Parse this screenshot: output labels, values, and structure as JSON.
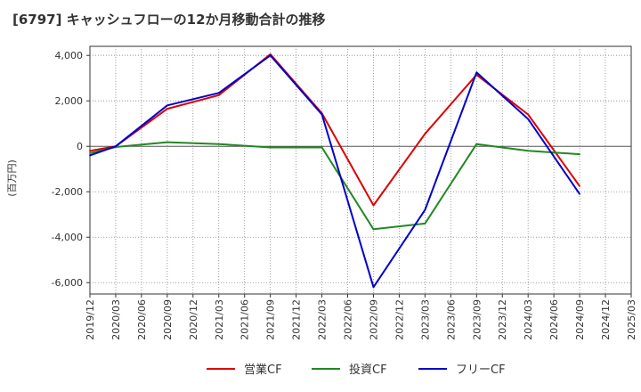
{
  "title": "[6797]  キャッシュフローの12か月移動合計の推移",
  "chart_data": {
    "type": "line",
    "title": "[6797]  キャッシュフローの12か月移動合計の推移",
    "ylabel": "(百万円)",
    "xlabel": "",
    "ylim": [
      -6500,
      4400
    ],
    "yticks": [
      4000,
      2000,
      0,
      -2000,
      -4000,
      -6000
    ],
    "ytick_labels": [
      "4,000",
      "2,000",
      "0",
      "-2,000",
      "-4,000",
      "-6,000"
    ],
    "x_ticks": [
      "2019/12",
      "2020/03",
      "2020/06",
      "2020/09",
      "2020/12",
      "2021/03",
      "2021/06",
      "2021/09",
      "2021/12",
      "2022/03",
      "2022/06",
      "2022/09",
      "2022/12",
      "2023/03",
      "2023/06",
      "2023/09",
      "2023/12",
      "2024/03",
      "2024/06",
      "2024/09",
      "2024/12",
      "2025/03"
    ],
    "x": [
      "2019/12",
      "2020/03",
      "2020/09",
      "2021/03",
      "2021/09",
      "2022/03",
      "2022/09",
      "2023/03",
      "2023/09",
      "2024/03",
      "2024/09"
    ],
    "grid": true,
    "legend": "bottom",
    "series": [
      {
        "name": "営業CF",
        "color": "#dd0000",
        "values": [
          -200,
          0,
          1650,
          2250,
          4050,
          1450,
          -2600,
          550,
          3150,
          1400,
          -1750
        ]
      },
      {
        "name": "投資CF",
        "color": "#228822",
        "values": [
          -300,
          -30,
          180,
          100,
          -50,
          -50,
          -3650,
          -3400,
          100,
          -200,
          -350
        ]
      },
      {
        "name": "フリーCF",
        "color": "#0000cc",
        "values": [
          -400,
          0,
          1800,
          2350,
          4000,
          1400,
          -6200,
          -2800,
          3250,
          1200,
          -2100
        ]
      }
    ]
  }
}
